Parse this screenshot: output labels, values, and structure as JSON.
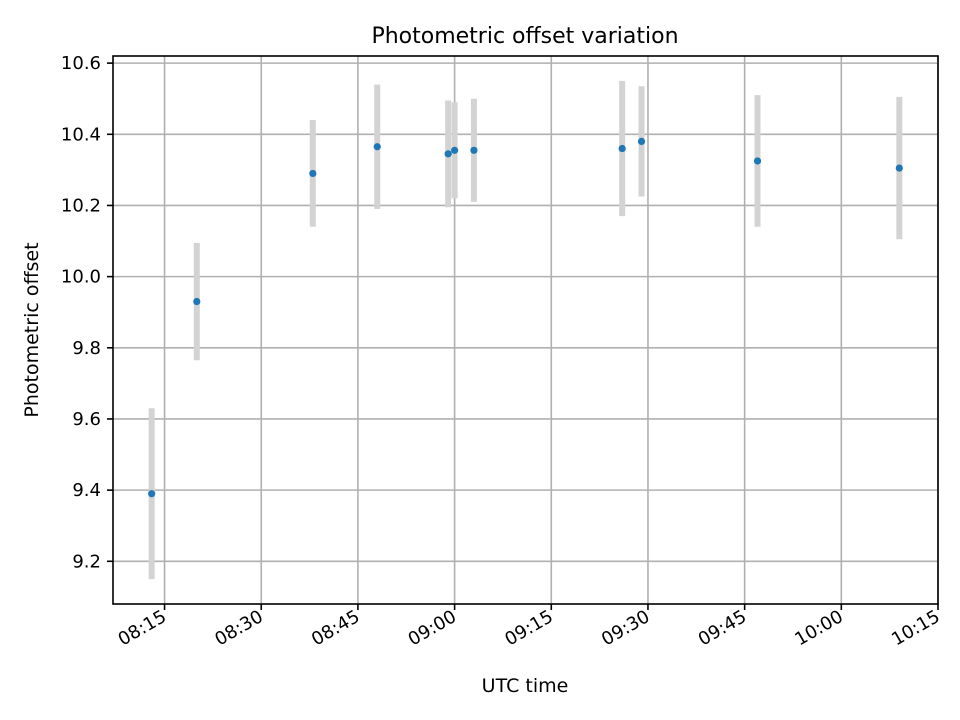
{
  "chart_data": {
    "type": "scatter",
    "title": "Photometric offset variation",
    "xlabel": "UTC time",
    "ylabel": "Photometric offset",
    "x_ticks": [
      "08:15",
      "08:30",
      "08:45",
      "09:00",
      "09:15",
      "09:30",
      "09:45",
      "10:00",
      "10:15"
    ],
    "y_ticks": [
      "9.2",
      "9.4",
      "9.6",
      "9.8",
      "10.0",
      "10.2",
      "10.4",
      "10.6"
    ],
    "xlim": [
      "08:07",
      "10:15"
    ],
    "ylim": [
      9.08,
      10.62
    ],
    "grid": true,
    "marker_color": "#1f77b4",
    "errorbar_color": "#d3d3d3",
    "points": [
      {
        "x": "08:13",
        "y": 9.39,
        "yerr": 0.24
      },
      {
        "x": "08:20",
        "y": 9.93,
        "yerr": 0.165
      },
      {
        "x": "08:38",
        "y": 10.29,
        "yerr": 0.15
      },
      {
        "x": "08:48",
        "y": 10.365,
        "yerr": 0.175
      },
      {
        "x": "08:59",
        "y": 10.345,
        "yerr": 0.15
      },
      {
        "x": "09:00",
        "y": 10.355,
        "yerr": 0.135
      },
      {
        "x": "09:03",
        "y": 10.355,
        "yerr": 0.145
      },
      {
        "x": "09:26",
        "y": 10.36,
        "yerr": 0.19
      },
      {
        "x": "09:29",
        "y": 10.38,
        "yerr": 0.155
      },
      {
        "x": "09:47",
        "y": 10.325,
        "yerr": 0.185
      },
      {
        "x": "10:09",
        "y": 10.305,
        "yerr": 0.2
      }
    ]
  }
}
